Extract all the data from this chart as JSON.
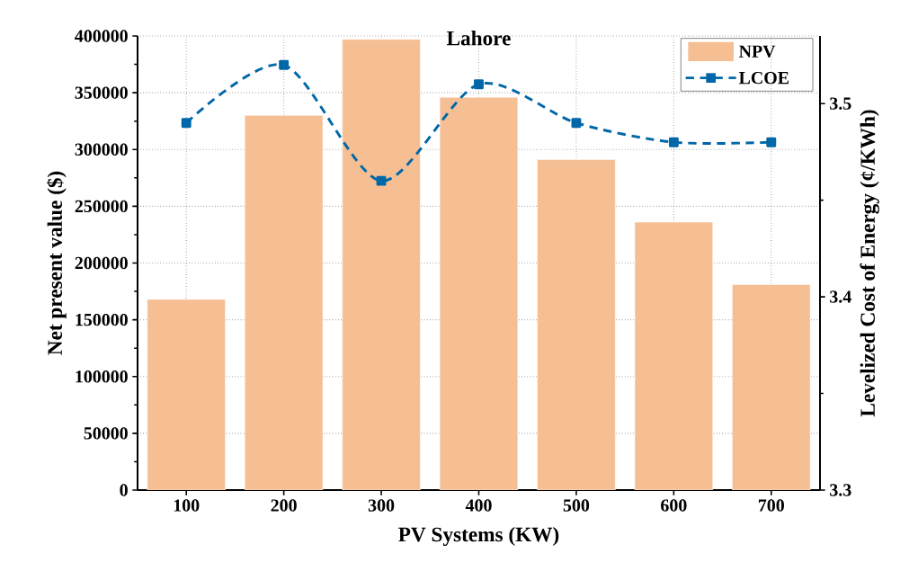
{
  "chart_data": {
    "type": "bar",
    "title": "Lahore",
    "xlabel": "PV Systems (KW)",
    "ylabel": "Net present value ($)",
    "y2label": "Levelized Cost of Energy (¢/KWh)",
    "categories": [
      "100",
      "200",
      "300",
      "400",
      "500",
      "600",
      "700"
    ],
    "series": [
      {
        "name": "NPV",
        "color": "#f6be93",
        "values": [
          168000,
          330000,
          397000,
          346000,
          291000,
          236000,
          181000
        ]
      },
      {
        "name": "LCOE",
        "type": "line",
        "axis": "y2",
        "color": "#0067a8",
        "marker": "square",
        "line_style": "dashed",
        "values": [
          3.49,
          3.52,
          3.46,
          3.51,
          3.49,
          3.48,
          3.48
        ]
      }
    ],
    "ylim": [
      0,
      400000
    ],
    "yticks": [
      0,
      50000,
      100000,
      150000,
      200000,
      250000,
      300000,
      350000,
      400000
    ],
    "y2lim": [
      3.3,
      3.535
    ],
    "y2ticks": [
      3.3,
      3.4,
      3.5
    ],
    "grid": true,
    "legend": "top right"
  }
}
